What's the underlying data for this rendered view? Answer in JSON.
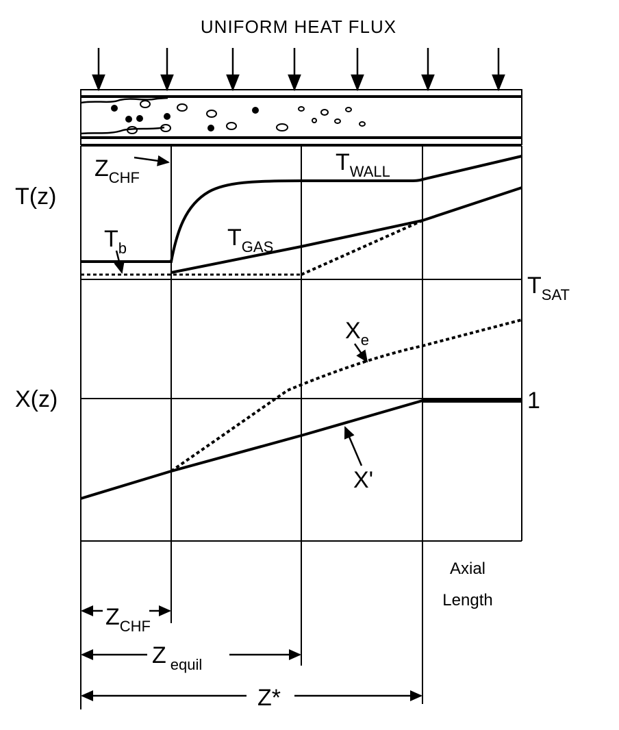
{
  "title": "UNIFORM HEAT FLUX",
  "labels": {
    "t_of_z": "T(z)",
    "x_of_z": "X(z)",
    "z_main": "Z",
    "chf_sub": "CHF",
    "t_main": "T",
    "b_sub": "b",
    "wall_sub": "WALL",
    "gas_sub": "GAS",
    "sat_sub": "SAT",
    "x_main": "X",
    "e_sub": "e",
    "x_prime": "X'",
    "one": "1",
    "equil_sub": "equil",
    "z_star": "Z*",
    "axial_1": "Axial",
    "axial_2": "Length"
  },
  "colors": {
    "ink": "#000000",
    "paper": "#ffffff"
  }
}
